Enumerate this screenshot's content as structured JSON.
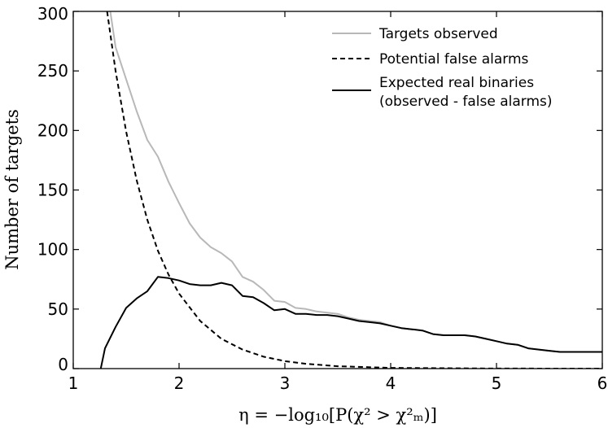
{
  "chart_data": {
    "type": "line",
    "xlabel": "η = −log₁₀[P(χ² > χ²ₘ)]",
    "ylabel": "Number of targets",
    "xlim": [
      1,
      6
    ],
    "ylim": [
      0,
      300
    ],
    "x_ticks": [
      "1",
      "2",
      "3",
      "4",
      "5",
      "6"
    ],
    "y_ticks": [
      "0",
      "50",
      "100",
      "150",
      "200",
      "250",
      "300"
    ],
    "grid": false,
    "legend_position": "top-right",
    "series": [
      {
        "name": "Targets observed",
        "color": "#b8b8b8",
        "style": "solid",
        "x": [
          1.35,
          1.4,
          1.5,
          1.6,
          1.7,
          1.8,
          1.9,
          2.0,
          2.1,
          2.2,
          2.3,
          2.4,
          2.5,
          2.6,
          2.7,
          2.8,
          2.9,
          3.0,
          3.1,
          3.2,
          3.3,
          3.4,
          3.5,
          3.6,
          3.7,
          3.8,
          3.9,
          4.0,
          4.1,
          4.2,
          4.3,
          4.4,
          4.5,
          4.6,
          4.7,
          4.8,
          4.9,
          5.0,
          5.1,
          5.2,
          5.3,
          5.4,
          5.5,
          5.6,
          5.7,
          5.8,
          5.9,
          6.0
        ],
        "y": [
          300,
          270,
          243,
          216,
          192,
          178,
          157,
          139,
          122,
          110,
          102,
          97,
          90,
          77,
          73,
          66,
          57,
          56,
          51,
          50,
          48,
          47,
          46,
          43,
          41,
          40,
          39,
          36,
          34,
          33,
          32,
          29,
          28,
          28,
          28,
          27,
          25,
          23,
          21,
          20,
          17,
          16,
          15,
          14,
          14,
          14,
          14,
          14
        ]
      },
      {
        "name": "Potential false alarms",
        "color": "#000000",
        "style": "dashed",
        "x": [
          1.32,
          1.4,
          1.5,
          1.6,
          1.7,
          1.8,
          1.9,
          2.0,
          2.2,
          2.4,
          2.6,
          2.8,
          3.0,
          3.2,
          3.5,
          4.0,
          5.0,
          6.0
        ],
        "y": [
          300,
          250,
          199,
          158,
          125,
          99,
          79,
          63,
          40,
          25,
          16,
          10,
          6.3,
          4,
          2,
          0.6,
          0.06,
          0.006
        ]
      },
      {
        "name": "Expected real binaries\n(observed - false alarms)",
        "label_lines": [
          "Expected real binaries",
          "(observed - false alarms)"
        ],
        "color": "#000000",
        "style": "solid",
        "x": [
          1.26,
          1.3,
          1.4,
          1.5,
          1.6,
          1.7,
          1.8,
          1.9,
          2.0,
          2.1,
          2.2,
          2.3,
          2.4,
          2.5,
          2.6,
          2.7,
          2.8,
          2.9,
          3.0,
          3.1,
          3.2,
          3.3,
          3.4,
          3.5,
          3.6,
          3.7,
          3.8,
          3.9,
          4.0,
          4.1,
          4.2,
          4.3,
          4.4,
          4.5,
          4.6,
          4.7,
          4.8,
          4.9,
          5.0,
          5.1,
          5.2,
          5.3,
          5.4,
          5.5,
          5.6,
          5.7,
          5.8,
          5.9,
          6.0
        ],
        "y": [
          0,
          17,
          35,
          51,
          59,
          65,
          77,
          76,
          74,
          71,
          70,
          70,
          72,
          70,
          61,
          60,
          55,
          49,
          50,
          46,
          46,
          45,
          45,
          44,
          42,
          40,
          39,
          38,
          36,
          34,
          33,
          32,
          29,
          28,
          28,
          28,
          27,
          25,
          23,
          21,
          20,
          17,
          16,
          15,
          14,
          14,
          14,
          14,
          14
        ]
      }
    ]
  }
}
